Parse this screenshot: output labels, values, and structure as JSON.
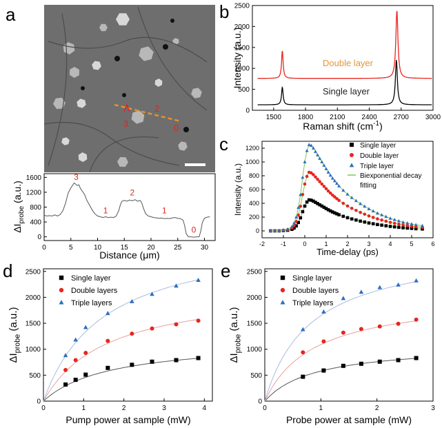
{
  "figure": {
    "panel_labels": [
      "a",
      "b",
      "c",
      "d",
      "e"
    ]
  },
  "image_a": {
    "annotations": [
      "1",
      "2",
      "3",
      "0"
    ]
  },
  "chart_data": [
    {
      "id": "a_profile",
      "type": "line",
      "ylabel_main": "ΔI",
      "ylabel_sub": "probe",
      "ylabel_unit": " (a.u.)",
      "xlabel": "Distance (μm)",
      "xlim": [
        0,
        32
      ],
      "ylim": [
        -100,
        1700
      ],
      "xticks": [
        0,
        5,
        10,
        15,
        20,
        25,
        30
      ],
      "yticks": [
        0,
        400,
        800,
        1200,
        1600
      ],
      "x": [
        0,
        0.5,
        1,
        1.5,
        2,
        2.5,
        3,
        3.5,
        4,
        4.5,
        5,
        5.3,
        5.6,
        5.9,
        6.2,
        6.5,
        6.8,
        7.2,
        7.6,
        8,
        8.5,
        9,
        9.5,
        10,
        10.5,
        11,
        11.5,
        12,
        12.5,
        13,
        13.5,
        14,
        14.3,
        14.6,
        15,
        15.5,
        16,
        16.5,
        17,
        17.5,
        18,
        18.3,
        18.6,
        19,
        19.5,
        20,
        20.5,
        21,
        21.5,
        22,
        22.5,
        23,
        23.5,
        24,
        24.5,
        25,
        25.5,
        26,
        26.3,
        26.6,
        27,
        27.5,
        28,
        28.5,
        29,
        29.3,
        29.6,
        30,
        30.5,
        31
      ],
      "y": [
        580,
        560,
        570,
        560,
        590,
        560,
        600,
        700,
        900,
        1180,
        1320,
        1380,
        1450,
        1420,
        1380,
        1400,
        1300,
        1220,
        1130,
        980,
        850,
        720,
        620,
        560,
        540,
        520,
        540,
        520,
        530,
        520,
        560,
        720,
        880,
        960,
        980,
        960,
        990,
        970,
        1000,
        960,
        980,
        900,
        760,
        620,
        560,
        540,
        520,
        510,
        500,
        505,
        490,
        500,
        490,
        510,
        520,
        500,
        490,
        450,
        300,
        80,
        0,
        0,
        -10,
        0,
        0,
        150,
        380,
        500,
        530,
        540
      ],
      "labels": [
        {
          "text": "3",
          "x": 6.0,
          "y": 1460
        },
        {
          "text": "1",
          "x": 11.5,
          "y": 560
        },
        {
          "text": "2",
          "x": 16.5,
          "y": 1040
        },
        {
          "text": "1",
          "x": 22.5,
          "y": 560
        },
        {
          "text": "0",
          "x": 28.0,
          "y": 40
        }
      ]
    },
    {
      "id": "b_raman",
      "type": "line",
      "ylabel": "Intensity (a.u.)",
      "xlabel_main": "Raman shift (cm",
      "xlabel_sup": "-1",
      "xlabel_end": ")",
      "xlim": [
        1300,
        3000
      ],
      "ylim": [
        0,
        2500
      ],
      "xticks": [
        1500,
        1800,
        2100,
        2400,
        2700,
        3000
      ],
      "yticks": [
        0,
        500,
        1000,
        1500,
        2000,
        2500
      ],
      "series": [
        {
          "name": "Double layer",
          "color": "#e8251e",
          "baseline": 760,
          "peaks": [
            {
              "x": 1582,
              "h": 660,
              "w": 9
            },
            {
              "x": 2660,
              "h": 1620,
              "w": 12
            }
          ]
        },
        {
          "name": "Single layer",
          "color": "#000000",
          "baseline": 130,
          "peaks": [
            {
              "x": 1582,
              "h": 420,
              "w": 9
            },
            {
              "x": 2655,
              "h": 1070,
              "w": 11
            }
          ]
        }
      ],
      "series_label_colors": [
        "#e69436",
        "#222222"
      ]
    },
    {
      "id": "c_decay",
      "type": "scatter",
      "ylabel": "Intensity (a.u.)",
      "xlabel": "Time-delay (ps)",
      "xlim": [
        -2,
        6
      ],
      "ylim": [
        -100,
        1300
      ],
      "xticks": [
        -2,
        -1,
        0,
        1,
        2,
        3,
        4,
        5,
        6
      ],
      "yticks": [
        0,
        200,
        400,
        600,
        800,
        1000,
        1200
      ],
      "legend": [
        "Single layer",
        "Double layer",
        "Triple layer",
        "Biexponential decay",
        "fitting"
      ],
      "fit_color": "#7ec850",
      "series": [
        {
          "name": "Single layer",
          "marker": "square",
          "color": "#000000",
          "amp": 450
        },
        {
          "name": "Double layer",
          "marker": "circle",
          "color": "#e8251e",
          "amp": 850
        },
        {
          "name": "Triple layer",
          "marker": "triangle",
          "color": "#2e6ec0",
          "amp": 1250
        }
      ],
      "x": [
        -1.6,
        -1.4,
        -1.2,
        -1.0,
        -0.8,
        -0.6,
        -0.5,
        -0.4,
        -0.3,
        -0.2,
        -0.1,
        0.0,
        0.1,
        0.2,
        0.3,
        0.4,
        0.5,
        0.6,
        0.7,
        0.8,
        0.9,
        1.0,
        1.1,
        1.2,
        1.3,
        1.4,
        1.5,
        1.6,
        1.8,
        2.0,
        2.2,
        2.4,
        2.6,
        2.8,
        3.0,
        3.2,
        3.4,
        3.6,
        3.8,
        4.0,
        4.2,
        4.4,
        4.6,
        4.8,
        5.0,
        5.2,
        5.5
      ],
      "shape": [
        0,
        0,
        0,
        0.01,
        0.02,
        0.05,
        0.09,
        0.16,
        0.27,
        0.42,
        0.62,
        0.8,
        0.93,
        1.0,
        0.99,
        0.96,
        0.92,
        0.88,
        0.84,
        0.8,
        0.76,
        0.72,
        0.68,
        0.645,
        0.61,
        0.58,
        0.55,
        0.52,
        0.47,
        0.425,
        0.385,
        0.35,
        0.315,
        0.285,
        0.255,
        0.23,
        0.205,
        0.185,
        0.165,
        0.145,
        0.13,
        0.115,
        0.1,
        0.09,
        0.08,
        0.07,
        0.06
      ]
    },
    {
      "id": "d_pump",
      "type": "scatter",
      "ylabel_main": "ΔI",
      "ylabel_sub": "probe",
      "ylabel_unit": " (a.u.)",
      "xlabel": "Pump power at sample (mW)",
      "xlim": [
        0,
        4.2
      ],
      "ylim": [
        0,
        2550
      ],
      "xticks": [
        0,
        1,
        2,
        3,
        4
      ],
      "yticks": [
        0,
        500,
        1000,
        1500,
        2000,
        2500
      ],
      "legend": [
        "Single layer",
        "Double layers",
        "Triple layers"
      ],
      "x": [
        0.55,
        0.8,
        1.05,
        1.6,
        2.2,
        2.7,
        3.3,
        3.85
      ],
      "series": [
        {
          "name": "Single layer",
          "marker": "square",
          "color": "#000000",
          "values": [
            320,
            410,
            510,
            640,
            700,
            760,
            790,
            830
          ]
        },
        {
          "name": "Double layers",
          "marker": "circle",
          "color": "#e8251e",
          "values": [
            600,
            790,
            930,
            1160,
            1300,
            1400,
            1480,
            1550
          ]
        },
        {
          "name": "Triple layers",
          "marker": "triangle",
          "color": "#2e6ec0",
          "values": [
            880,
            1180,
            1420,
            1690,
            1920,
            2060,
            2220,
            2330
          ]
        }
      ],
      "fits": [
        {
          "color": "#555555",
          "vmax": 1180,
          "k": 1.65
        },
        {
          "color": "#e8a0a0",
          "vmax": 2230,
          "k": 1.6
        },
        {
          "color": "#a8bce0",
          "vmax": 3250,
          "k": 1.5
        }
      ]
    },
    {
      "id": "e_probe",
      "type": "scatter",
      "ylabel_main": "ΔI",
      "ylabel_sub": "probe",
      "ylabel_unit": " (a.u.)",
      "xlabel": "Probe  power at sample (mW)",
      "xlim": [
        0,
        3
      ],
      "ylim": [
        0,
        2550
      ],
      "xticks": [
        0,
        1,
        2,
        3
      ],
      "yticks": [
        0,
        500,
        1000,
        1500,
        2000,
        2500
      ],
      "legend": [
        "Single layer",
        "Double layers",
        "Triple layers"
      ],
      "x": [
        0.68,
        1.05,
        1.4,
        1.72,
        2.05,
        2.38,
        2.7
      ],
      "series": [
        {
          "name": "Single layer",
          "marker": "square",
          "color": "#000000",
          "values": [
            470,
            590,
            680,
            720,
            760,
            790,
            830
          ]
        },
        {
          "name": "Double layers",
          "marker": "circle",
          "color": "#e8251e",
          "values": [
            940,
            1150,
            1320,
            1390,
            1440,
            1490,
            1570
          ]
        },
        {
          "name": "Triple layers",
          "marker": "triangle",
          "color": "#2e6ec0",
          "values": [
            1380,
            1720,
            1980,
            2100,
            2190,
            2240,
            2320
          ]
        }
      ],
      "fits": [
        {
          "color": "#555555",
          "vmax": 1100,
          "k": 0.9
        },
        {
          "color": "#e8a0a0",
          "vmax": 2050,
          "k": 0.88
        },
        {
          "color": "#a8bce0",
          "vmax": 3000,
          "k": 0.82
        }
      ]
    }
  ]
}
